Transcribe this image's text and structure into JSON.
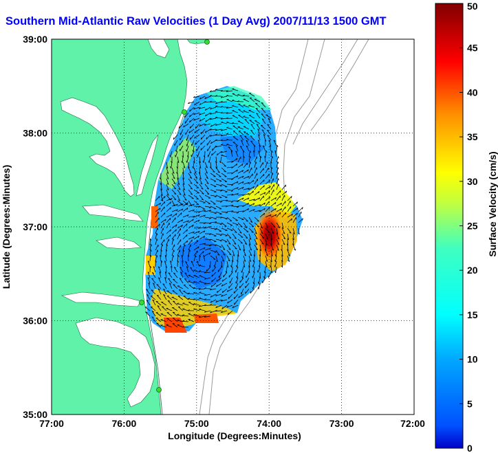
{
  "title": "Southern Mid-Atlantic Raw Velocities (1 Day Avg) 2007/11/13 1500 GMT",
  "map": {
    "x_label": "Longitude (Degrees:Minutes)",
    "y_label": "Latitude (Degrees:Minutes)",
    "x_ticks": [
      "77:00",
      "76:00",
      "75:00",
      "74:00",
      "73:00",
      "72:00"
    ],
    "y_ticks": [
      "39:00",
      "38:00",
      "37:00",
      "36:00",
      "35:00"
    ],
    "grid": "dotted",
    "colors": {
      "land": "#5ff2a8",
      "water": "#ffffff",
      "bathymetry": "#999999",
      "stations": "#33dd33",
      "vectors": "#000000"
    }
  },
  "colorbar": {
    "label": "Surface Velocity (cm/s)",
    "ticks": [
      "0",
      "5",
      "10",
      "15",
      "20",
      "25",
      "30",
      "35",
      "40",
      "45",
      "50"
    ],
    "range": [
      0,
      50
    ],
    "colormap": "jet"
  }
}
